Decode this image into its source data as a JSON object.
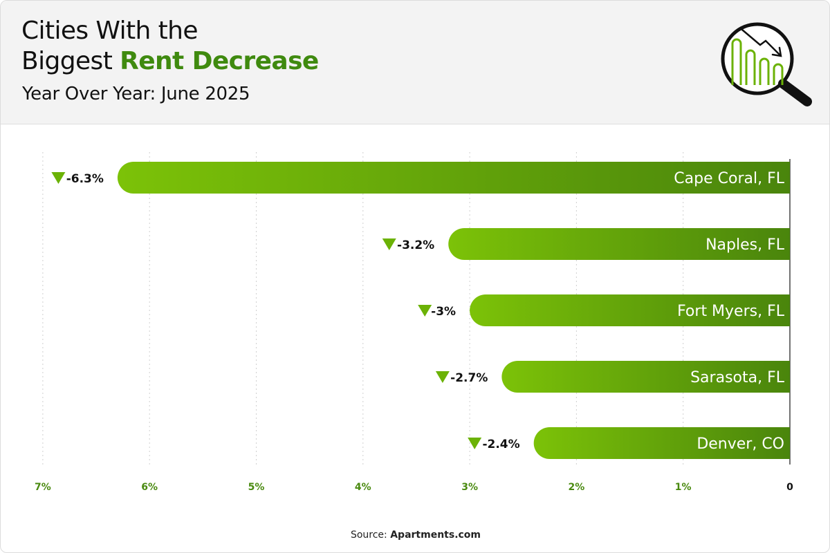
{
  "header": {
    "title_line1": "Cities With the",
    "title_line2_prefix": "Biggest ",
    "title_line2_accent": "Rent Decrease",
    "subtitle": "Year Over Year: June 2025",
    "icon": "magnifier-chart-decrease-icon"
  },
  "footer": {
    "source_prefix": "Source: ",
    "source_name": "Apartments.com"
  },
  "colors": {
    "accent": "#3f8a0f",
    "bar_light": "#7cc208",
    "bar_dark": "#4a850c",
    "arrow": "#6bb206",
    "tick": "#4a8a10"
  },
  "chart_data": {
    "type": "bar",
    "orientation": "horizontal",
    "direction": "right-to-left",
    "title": "Cities With the Biggest Rent Decrease",
    "subtitle": "Year Over Year: June 2025",
    "categories": [
      "Cape Coral, FL",
      "Naples, FL",
      "Fort Myers, FL",
      "Sarasota, FL",
      "Denver, CO"
    ],
    "values": [
      -6.3,
      -3.2,
      -3,
      -2.7,
      -2.4
    ],
    "labels": [
      "-6.3%",
      "-3.2%",
      "-3%",
      "-2.7%",
      "-2.4%"
    ],
    "xlim": [
      0,
      7
    ],
    "xticks": [
      "7%",
      "6%",
      "5%",
      "4%",
      "3%",
      "2%",
      "1%",
      "0"
    ],
    "grid": true
  }
}
